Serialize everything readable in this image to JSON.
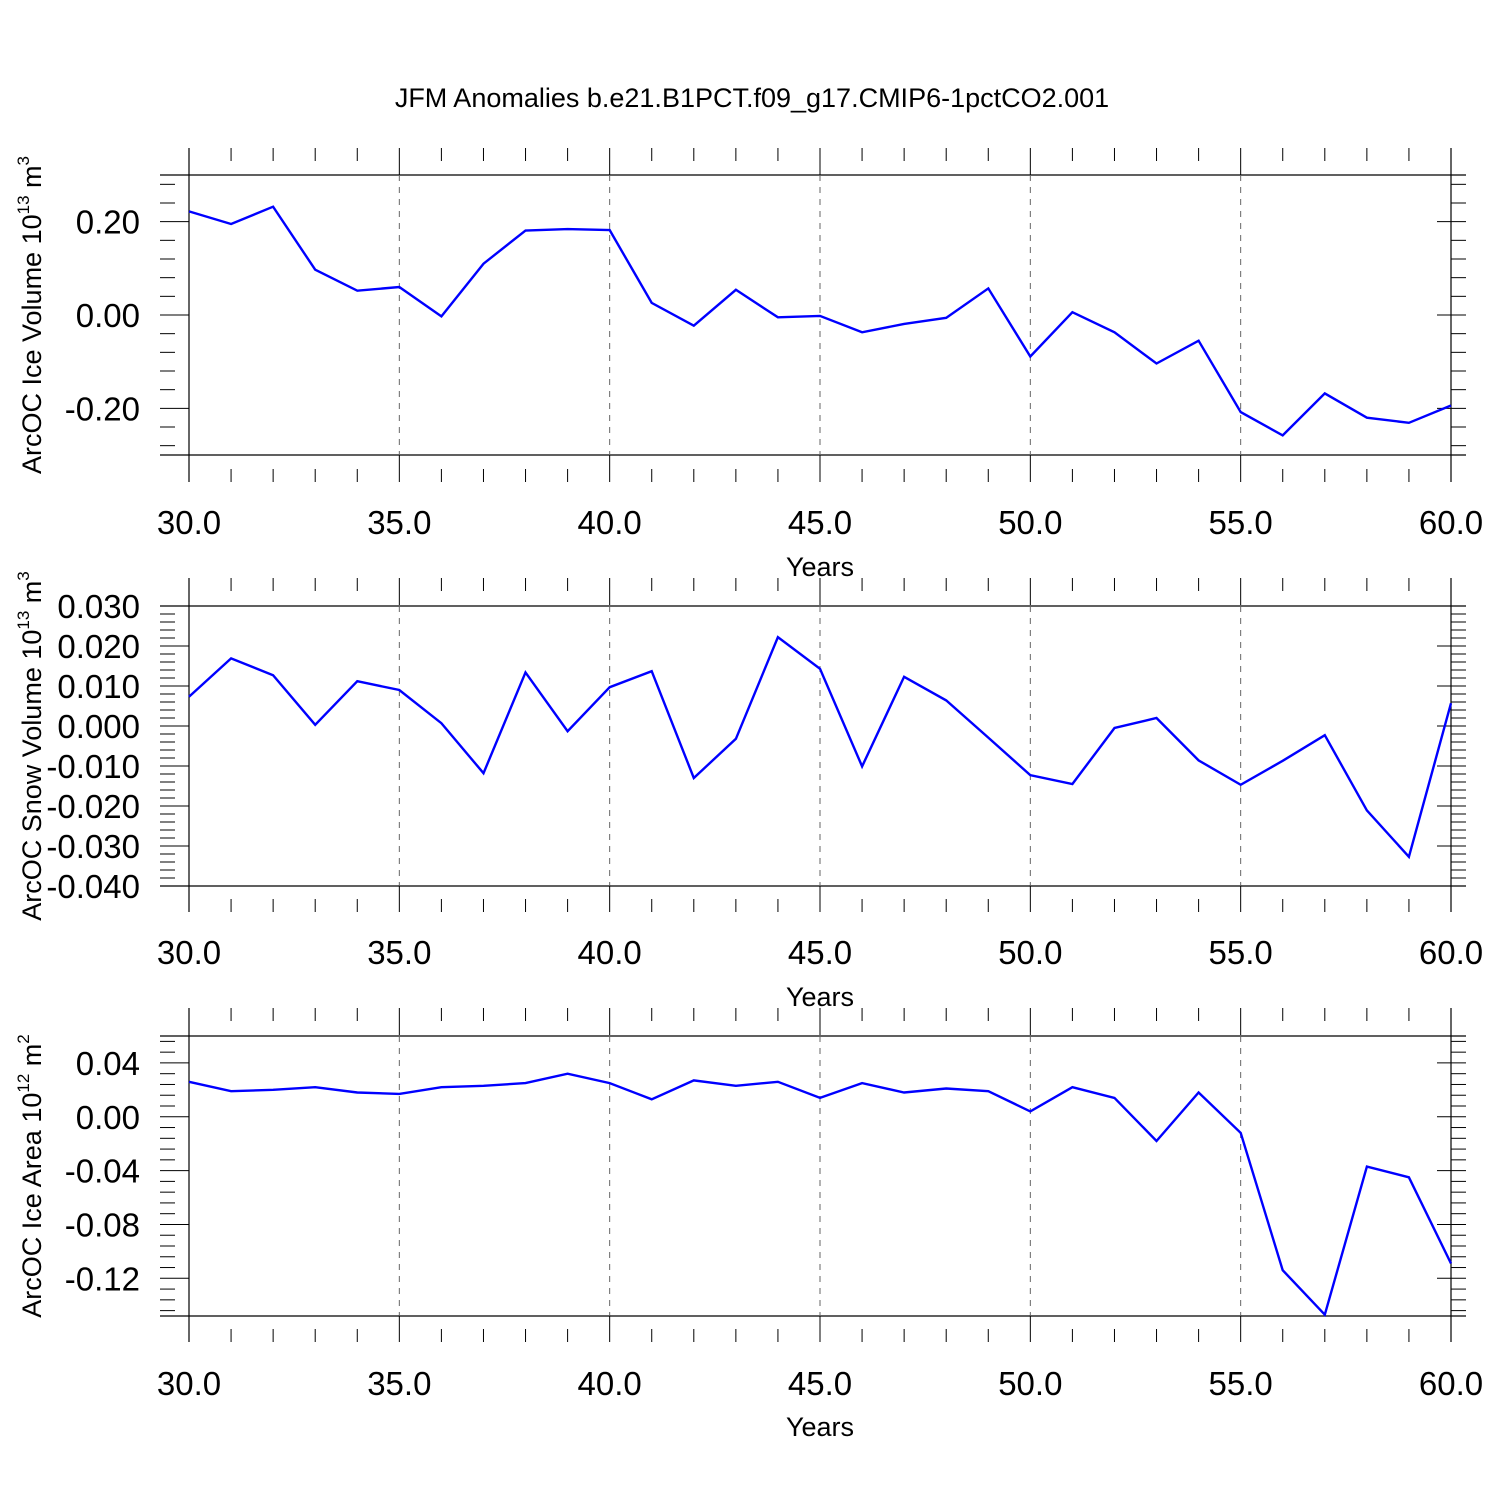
{
  "title": "JFM Anomalies b.e21.B1PCT.f09_g17.CMIP6-1pctCO2.001",
  "line_color": "#0000ff",
  "chart_data": [
    {
      "type": "line",
      "xlabel": "Years",
      "ylabel": {
        "text": "ArcOC Ice Volume 10",
        "sup": "13",
        "unit": " m",
        "unit_sup": "3"
      },
      "xlim": [
        30,
        60
      ],
      "ylim": [
        -0.3,
        0.3
      ],
      "xticks": [
        30,
        35,
        40,
        45,
        50,
        55,
        60
      ],
      "xtick_labels": [
        "30.0",
        "35.0",
        "40.0",
        "45.0",
        "50.0",
        "55.0",
        "60.0"
      ],
      "yticks": [
        -0.2,
        0.0,
        0.2
      ],
      "ytick_labels": [
        "-0.20",
        "0.00",
        "0.20"
      ],
      "grid": "vertical dashed at major x ticks",
      "x": [
        30,
        31,
        32,
        33,
        34,
        35,
        36,
        37,
        38,
        39,
        40,
        41,
        42,
        43,
        44,
        45,
        46,
        47,
        48,
        49,
        50,
        51,
        52,
        53,
        54,
        55,
        56,
        57,
        58,
        59,
        60
      ],
      "y": [
        0.222,
        0.195,
        0.232,
        0.097,
        0.052,
        0.06,
        -0.003,
        0.11,
        0.181,
        0.184,
        0.182,
        0.026,
        -0.023,
        0.054,
        -0.005,
        -0.002,
        -0.037,
        -0.019,
        -0.006,
        0.057,
        -0.089,
        0.006,
        -0.037,
        -0.104,
        -0.055,
        -0.208,
        -0.258,
        -0.168,
        -0.22,
        -0.231,
        -0.194
      ]
    },
    {
      "type": "line",
      "xlabel": "Years",
      "ylabel": {
        "text": "ArcOC Snow Volume 10",
        "sup": "13",
        "unit": " m",
        "unit_sup": "3"
      },
      "xlim": [
        30,
        60
      ],
      "ylim": [
        -0.04,
        0.03
      ],
      "xticks": [
        30,
        35,
        40,
        45,
        50,
        55,
        60
      ],
      "xtick_labels": [
        "30.0",
        "35.0",
        "40.0",
        "45.0",
        "50.0",
        "55.0",
        "60.0"
      ],
      "yticks": [
        -0.04,
        -0.03,
        -0.02,
        -0.01,
        0.0,
        0.01,
        0.02,
        0.03
      ],
      "ytick_labels": [
        "-0.040",
        "-0.030",
        "-0.020",
        "-0.010",
        "0.000",
        "0.010",
        "0.020",
        "0.030"
      ],
      "grid": "vertical dashed at major x ticks",
      "x": [
        30,
        31,
        32,
        33,
        34,
        35,
        36,
        37,
        38,
        39,
        40,
        41,
        42,
        43,
        44,
        45,
        46,
        47,
        48,
        49,
        50,
        51,
        52,
        53,
        54,
        55,
        56,
        57,
        58,
        59,
        60
      ],
      "y": [
        0.0073,
        0.0169,
        0.0127,
        0.0003,
        0.0112,
        0.009,
        0.0007,
        -0.0118,
        0.0134,
        -0.0013,
        0.0097,
        0.0137,
        -0.013,
        -0.0032,
        0.0222,
        0.0143,
        -0.0101,
        0.0123,
        0.0064,
        -0.0029,
        -0.0123,
        -0.0145,
        -0.0005,
        0.002,
        -0.0086,
        -0.0147,
        -0.0087,
        -0.0023,
        -0.0211,
        -0.0327,
        0.0057
      ]
    },
    {
      "type": "line",
      "xlabel": "Years",
      "ylabel": {
        "text": "ArcOC Ice Area 10",
        "sup": "12",
        "unit": " m",
        "unit_sup": "2"
      },
      "xlim": [
        30,
        60
      ],
      "ylim": [
        -0.148,
        0.06
      ],
      "xticks": [
        30,
        35,
        40,
        45,
        50,
        55,
        60
      ],
      "xtick_labels": [
        "30.0",
        "35.0",
        "40.0",
        "45.0",
        "50.0",
        "55.0",
        "60.0"
      ],
      "yticks": [
        -0.12,
        -0.08,
        -0.04,
        0.0,
        0.04
      ],
      "ytick_labels": [
        "-0.12",
        "-0.08",
        "-0.04",
        "0.00",
        "0.04"
      ],
      "grid": "vertical dashed at major x ticks",
      "x": [
        30,
        31,
        32,
        33,
        34,
        35,
        36,
        37,
        38,
        39,
        40,
        41,
        42,
        43,
        44,
        45,
        46,
        47,
        48,
        49,
        50,
        51,
        52,
        53,
        54,
        55,
        56,
        57,
        58,
        59,
        60
      ],
      "y": [
        0.026,
        0.019,
        0.02,
        0.022,
        0.018,
        0.017,
        0.022,
        0.023,
        0.025,
        0.032,
        0.025,
        0.013,
        0.027,
        0.023,
        0.026,
        0.014,
        0.025,
        0.018,
        0.021,
        0.019,
        0.004,
        0.022,
        0.014,
        -0.018,
        0.018,
        -0.012,
        -0.114,
        -0.147,
        -0.037,
        -0.045,
        -0.109
      ]
    }
  ]
}
